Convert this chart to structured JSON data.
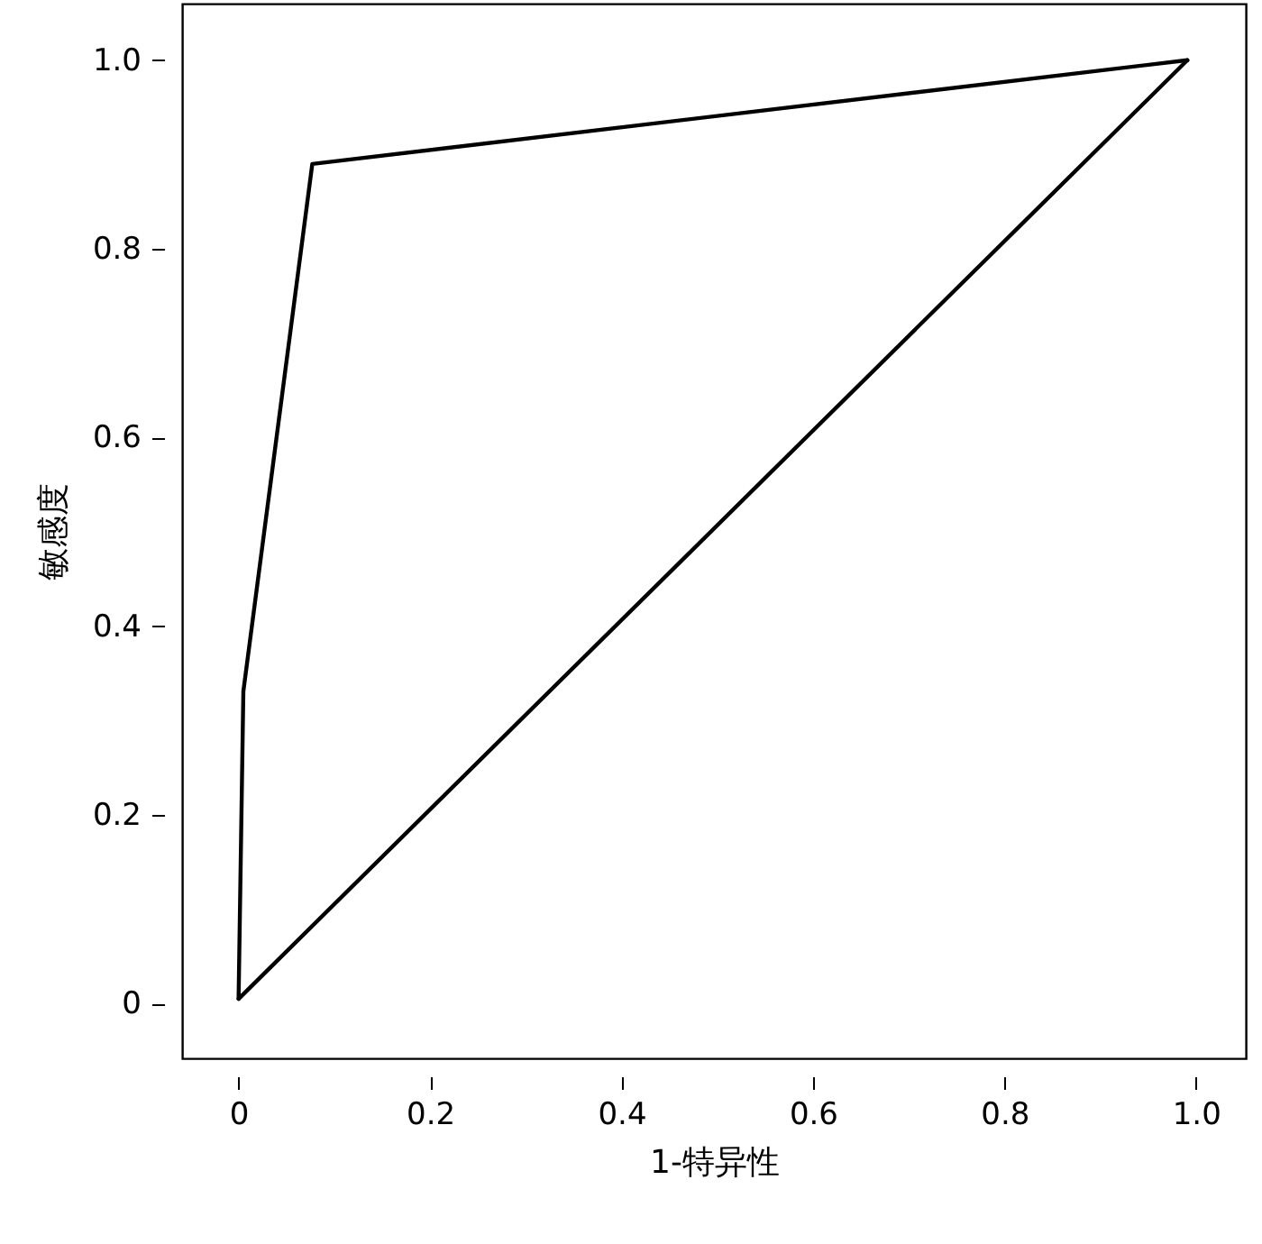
{
  "chart_data": {
    "type": "line",
    "xlabel": "1-特异性",
    "ylabel": "敏感度",
    "xlim": [
      -0.059,
      1.052
    ],
    "ylim": [
      -0.058,
      1.06
    ],
    "xticks": [
      {
        "value": 0,
        "label": "0"
      },
      0.2,
      0.4,
      0.6,
      0.8,
      {
        "value": 1,
        "label": "1.0"
      }
    ],
    "yticks": [
      {
        "value": 0,
        "label": "0"
      },
      0.2,
      0.4,
      0.6,
      0.8,
      {
        "value": 1,
        "label": "1.0"
      }
    ],
    "grid": false,
    "legend": false,
    "marker": "none",
    "line_style": "solid",
    "series": [
      {
        "color": "#000000",
        "x": [
          0,
          0.005,
          0.077,
          0.991
        ],
        "values": [
          0.005,
          0.331,
          0.89,
          1.0
        ]
      },
      {
        "color": "#000000",
        "x": [
          0,
          0.991
        ],
        "values": [
          0.005,
          1.0
        ]
      }
    ]
  }
}
